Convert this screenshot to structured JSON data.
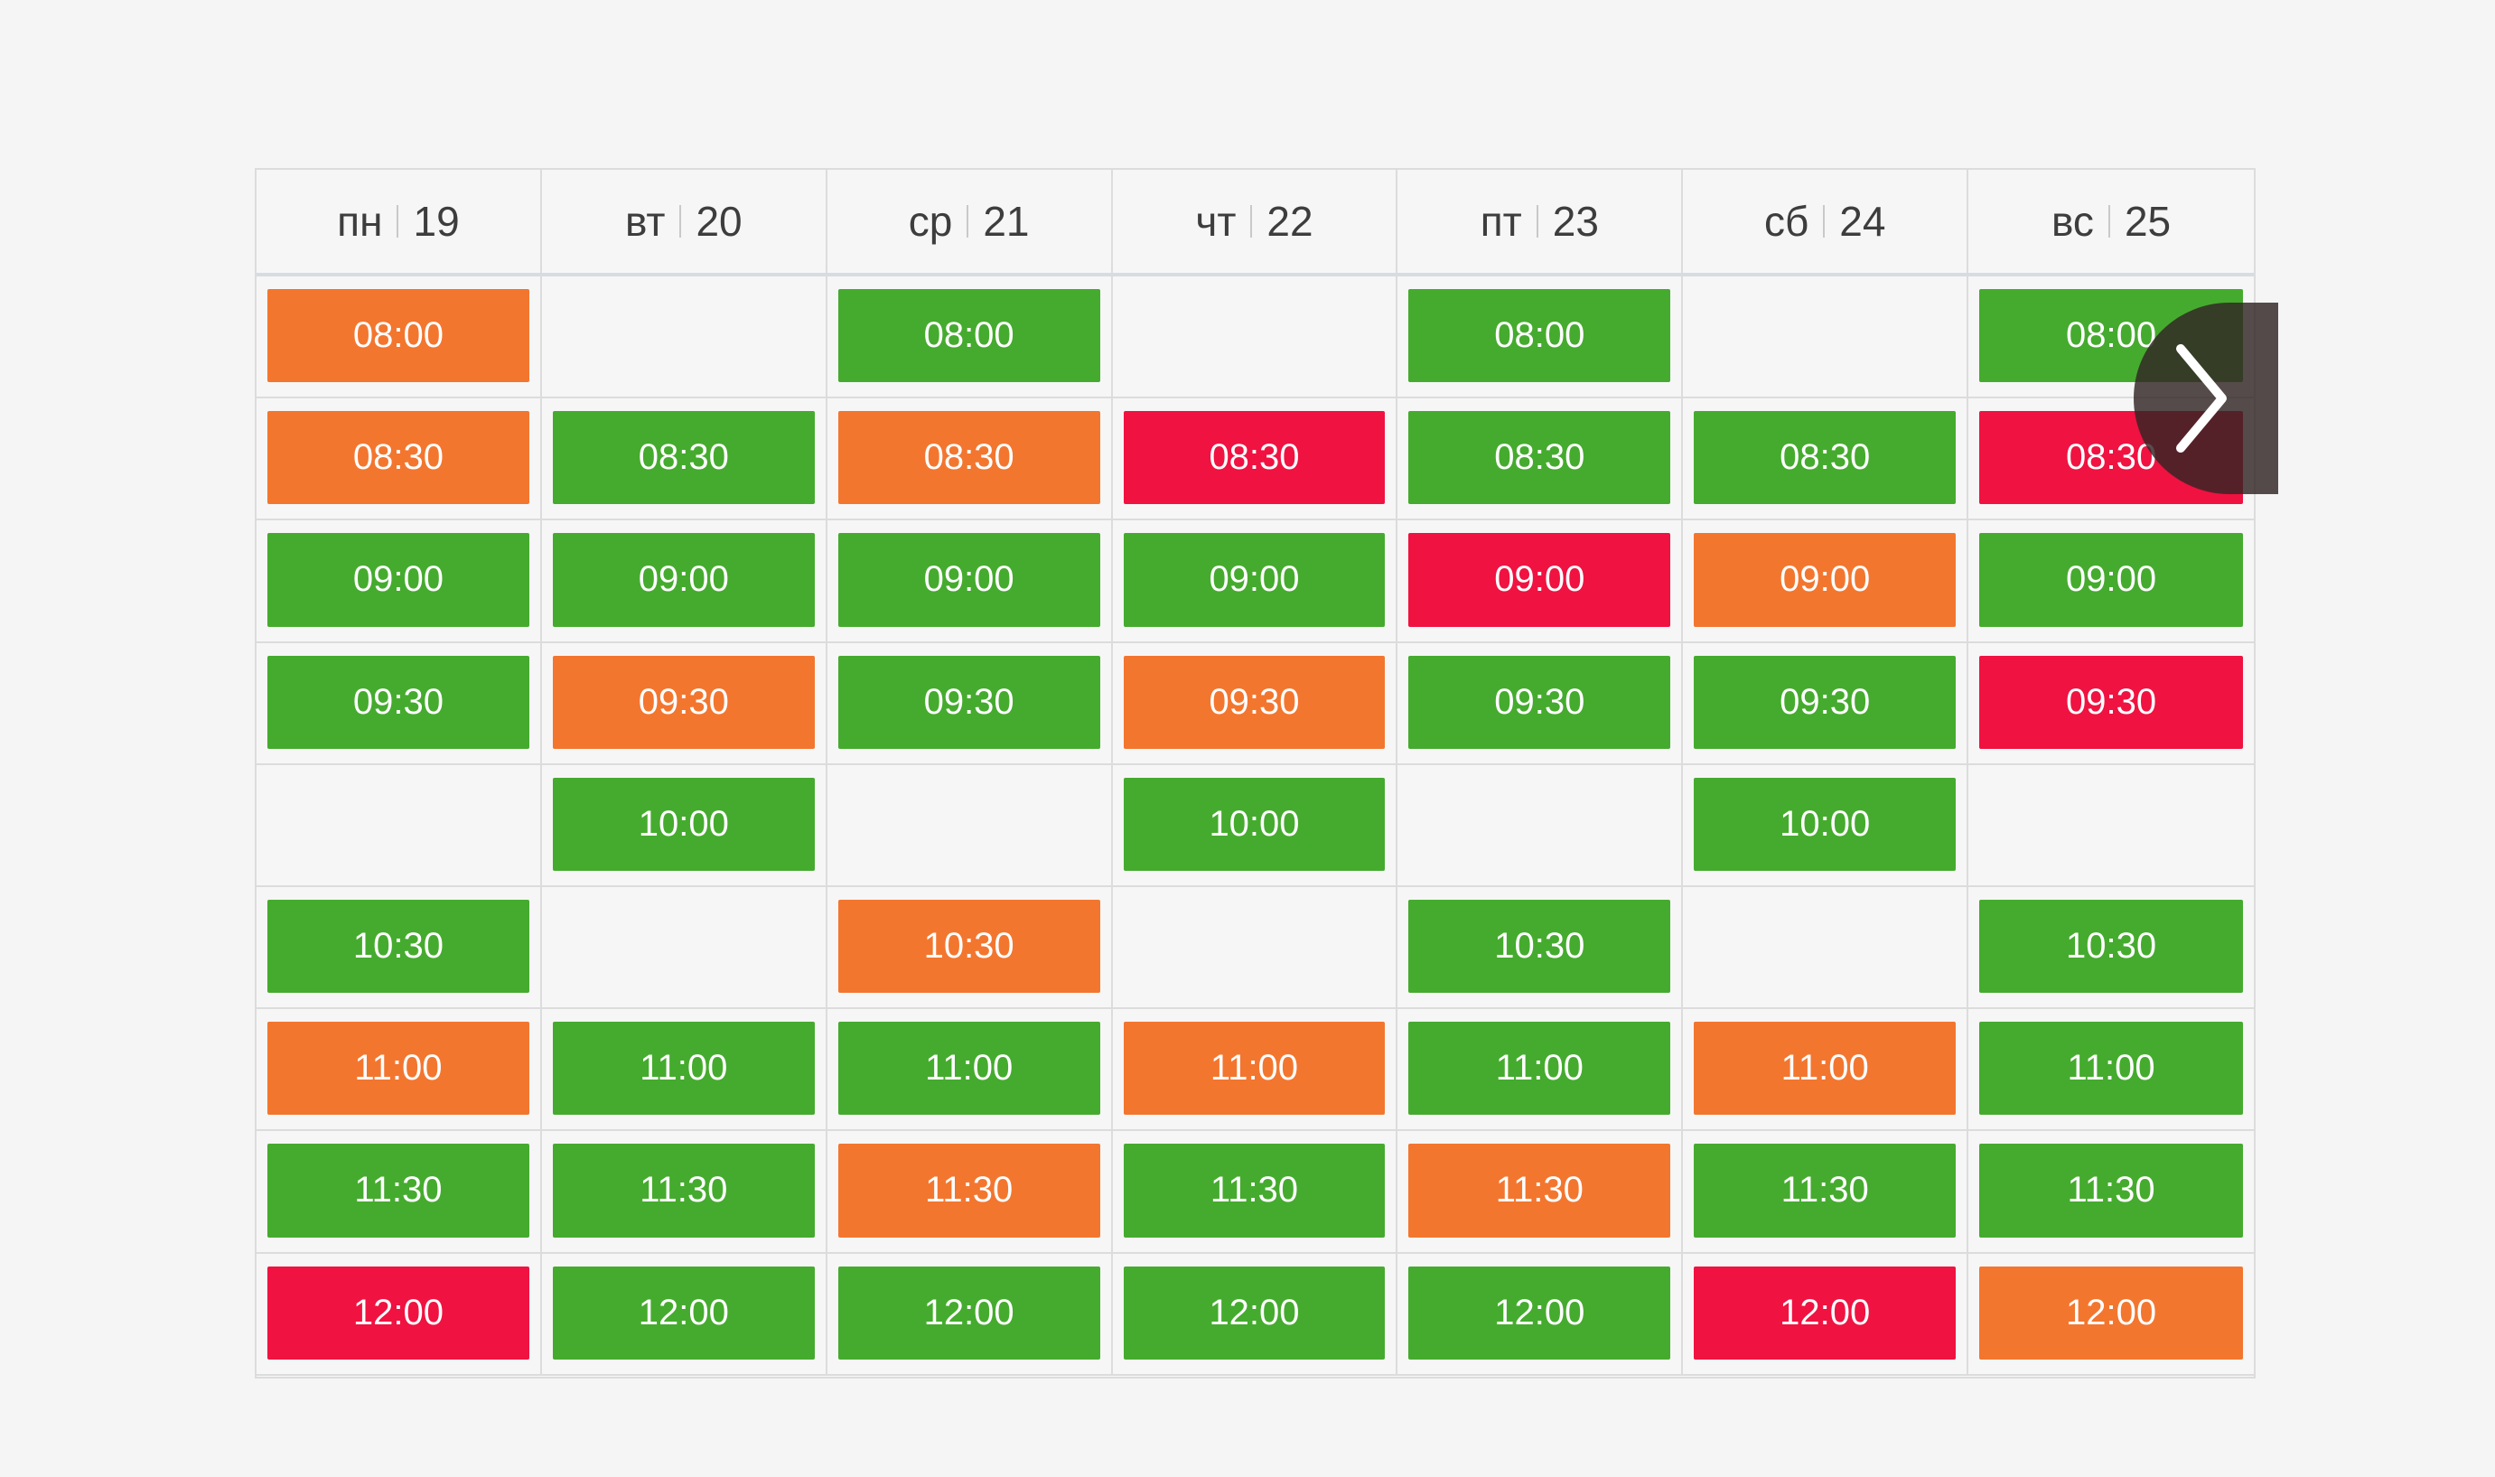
{
  "days": [
    {
      "name": "пн",
      "date": "19"
    },
    {
      "name": "вт",
      "date": "20"
    },
    {
      "name": "ср",
      "date": "21"
    },
    {
      "name": "чт",
      "date": "22"
    },
    {
      "name": "пт",
      "date": "23"
    },
    {
      "name": "сб",
      "date": "24"
    },
    {
      "name": "вс",
      "date": "25"
    }
  ],
  "colors": {
    "green": "#45ab2e",
    "orange": "#f3762f",
    "red": "#f01241"
  },
  "rows": [
    [
      {
        "time": "08:00",
        "status": "orange"
      },
      null,
      {
        "time": "08:00",
        "status": "green"
      },
      null,
      {
        "time": "08:00",
        "status": "green"
      },
      null,
      {
        "time": "08:00",
        "status": "green"
      }
    ],
    [
      {
        "time": "08:30",
        "status": "orange"
      },
      {
        "time": "08:30",
        "status": "green"
      },
      {
        "time": "08:30",
        "status": "orange"
      },
      {
        "time": "08:30",
        "status": "red"
      },
      {
        "time": "08:30",
        "status": "green"
      },
      {
        "time": "08:30",
        "status": "green"
      },
      {
        "time": "08:30",
        "status": "red"
      }
    ],
    [
      {
        "time": "09:00",
        "status": "green"
      },
      {
        "time": "09:00",
        "status": "green"
      },
      {
        "time": "09:00",
        "status": "green"
      },
      {
        "time": "09:00",
        "status": "green"
      },
      {
        "time": "09:00",
        "status": "red"
      },
      {
        "time": "09:00",
        "status": "orange"
      },
      {
        "time": "09:00",
        "status": "green"
      }
    ],
    [
      {
        "time": "09:30",
        "status": "green"
      },
      {
        "time": "09:30",
        "status": "orange"
      },
      {
        "time": "09:30",
        "status": "green"
      },
      {
        "time": "09:30",
        "status": "orange"
      },
      {
        "time": "09:30",
        "status": "green"
      },
      {
        "time": "09:30",
        "status": "green"
      },
      {
        "time": "09:30",
        "status": "red"
      }
    ],
    [
      null,
      {
        "time": "10:00",
        "status": "green"
      },
      null,
      {
        "time": "10:00",
        "status": "green"
      },
      null,
      {
        "time": "10:00",
        "status": "green"
      },
      null
    ],
    [
      {
        "time": "10:30",
        "status": "green"
      },
      null,
      {
        "time": "10:30",
        "status": "orange"
      },
      null,
      {
        "time": "10:30",
        "status": "green"
      },
      null,
      {
        "time": "10:30",
        "status": "green"
      }
    ],
    [
      {
        "time": "11:00",
        "status": "orange"
      },
      {
        "time": "11:00",
        "status": "green"
      },
      {
        "time": "11:00",
        "status": "green"
      },
      {
        "time": "11:00",
        "status": "orange"
      },
      {
        "time": "11:00",
        "status": "green"
      },
      {
        "time": "11:00",
        "status": "orange"
      },
      {
        "time": "11:00",
        "status": "green"
      }
    ],
    [
      {
        "time": "11:30",
        "status": "green"
      },
      {
        "time": "11:30",
        "status": "green"
      },
      {
        "time": "11:30",
        "status": "orange"
      },
      {
        "time": "11:30",
        "status": "green"
      },
      {
        "time": "11:30",
        "status": "orange"
      },
      {
        "time": "11:30",
        "status": "green"
      },
      {
        "time": "11:30",
        "status": "green"
      }
    ],
    [
      {
        "time": "12:00",
        "status": "red"
      },
      {
        "time": "12:00",
        "status": "green"
      },
      {
        "time": "12:00",
        "status": "green"
      },
      {
        "time": "12:00",
        "status": "green"
      },
      {
        "time": "12:00",
        "status": "green"
      },
      {
        "time": "12:00",
        "status": "red"
      },
      {
        "time": "12:00",
        "status": "orange"
      }
    ]
  ],
  "next_button": {
    "icon": "chevron-right-icon"
  }
}
